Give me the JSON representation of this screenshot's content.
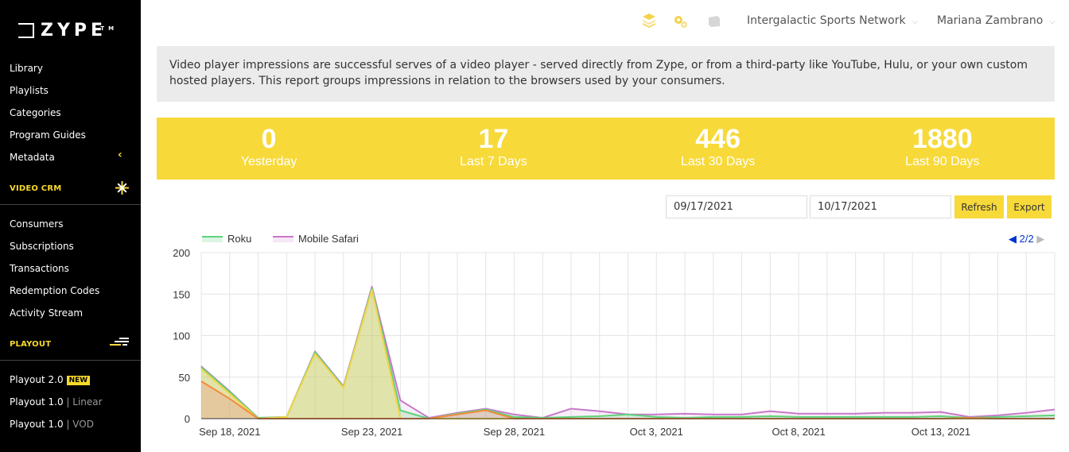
{
  "brand": {
    "logo_text": "ZYPE",
    "tm": "TM"
  },
  "sidebar": {
    "library_items": [
      "Library",
      "Playlists",
      "Categories",
      "Program Guides",
      "Metadata"
    ],
    "video_crm_label": "VIDEO CRM",
    "crm_items": [
      "Consumers",
      "Subscriptions",
      "Transactions",
      "Redemption Codes",
      "Activity Stream"
    ],
    "playout_label": "PLAYOUT",
    "playout_items": [
      {
        "label": "Playout 2.0",
        "badge": "NEW",
        "suffix": ""
      },
      {
        "label": "Playout 1.0",
        "badge": "",
        "suffix": "| Linear"
      },
      {
        "label": "Playout 1.0",
        "badge": "",
        "suffix": "| VOD"
      }
    ]
  },
  "topbar": {
    "network": "Intergalactic Sports Network",
    "user": "Mariana Zambrano"
  },
  "info": {
    "text": "Video player impressions are successful serves of a video player - served directly from Zype, or from a third-party like YouTube, Hulu, or your own custom hosted players. This report groups impressions in relation to the browsers used by your consumers."
  },
  "stats": [
    {
      "value": "0",
      "label": "Yesterday"
    },
    {
      "value": "17",
      "label": "Last 7 Days"
    },
    {
      "value": "446",
      "label": "Last 30 Days"
    },
    {
      "value": "1880",
      "label": "Last 90 Days"
    }
  ],
  "filters": {
    "start_date": "09/17/2021",
    "end_date": "10/17/2021",
    "refresh_label": "Refresh",
    "export_label": "Export"
  },
  "legend_pager": "2/2",
  "colors": {
    "sidebar_bg": "#000000",
    "accent": "#f7d93a",
    "roku": "#5fd37a",
    "safari": "#c779c9",
    "orange": "#f58a3c",
    "blue_link": "#0033cc"
  },
  "chart_data": {
    "type": "area",
    "x": [
      "Sep 17",
      "Sep 18",
      "Sep 19",
      "Sep 20",
      "Sep 21",
      "Sep 22",
      "Sep 23",
      "Sep 24",
      "Sep 25",
      "Sep 26",
      "Sep 27",
      "Sep 28",
      "Sep 29",
      "Sep 30",
      "Oct 1",
      "Oct 2",
      "Oct 3",
      "Oct 4",
      "Oct 5",
      "Oct 6",
      "Oct 7",
      "Oct 8",
      "Oct 9",
      "Oct 10",
      "Oct 11",
      "Oct 12",
      "Oct 13",
      "Oct 14",
      "Oct 15",
      "Oct 16",
      "Oct 17"
    ],
    "xtick_labels": [
      "Sep 18, 2021",
      "Sep 23, 2021",
      "Sep 28, 2021",
      "Oct 3, 2021",
      "Oct 8, 2021",
      "Oct 13, 2021"
    ],
    "xtick_index": [
      1,
      6,
      11,
      16,
      21,
      26
    ],
    "series": [
      {
        "name": "",
        "color": "#f58a3c",
        "fill": "rgba(245,120,120,0.25)",
        "values": [
          45,
          24,
          0,
          0,
          0,
          0,
          0,
          0,
          0,
          5,
          10,
          0,
          0,
          0,
          0,
          0,
          0,
          0,
          0,
          0,
          0,
          0,
          0,
          0,
          0,
          0,
          0,
          1,
          0,
          0,
          0
        ]
      },
      {
        "name": "",
        "color": "#f3d44a",
        "fill": "rgba(247,217,58,0.30)",
        "values": [
          60,
          30,
          0,
          2,
          78,
          37,
          155,
          0,
          0,
          0,
          0,
          0,
          0,
          0,
          0,
          0,
          0,
          0,
          0,
          0,
          0,
          0,
          0,
          0,
          0,
          0,
          0,
          0,
          0,
          0,
          0
        ]
      },
      {
        "name": "Roku",
        "color": "#5fd37a",
        "fill": "rgba(95,211,122,0.22)",
        "values": [
          62,
          32,
          1,
          2,
          80,
          38,
          157,
          10,
          0,
          6,
          11,
          2,
          1,
          2,
          3,
          5,
          2,
          1,
          2,
          2,
          3,
          2,
          2,
          2,
          2,
          2,
          3,
          1,
          2,
          3,
          4
        ]
      },
      {
        "name": "Mobile Safari",
        "color": "#c779c9",
        "fill": "rgba(199,121,201,0.12)",
        "values": [
          63,
          33,
          1,
          2,
          81,
          39,
          159,
          22,
          1,
          7,
          12,
          5,
          1,
          12,
          9,
          5,
          5,
          6,
          5,
          5,
          9,
          6,
          6,
          6,
          7,
          7,
          8,
          2,
          4,
          7,
          11
        ]
      }
    ],
    "xlabel": "",
    "ylabel": "",
    "ylim": [
      0,
      200
    ],
    "yticks": [
      0,
      50,
      100,
      150,
      200
    ],
    "grid": true,
    "legend": "top-left"
  }
}
